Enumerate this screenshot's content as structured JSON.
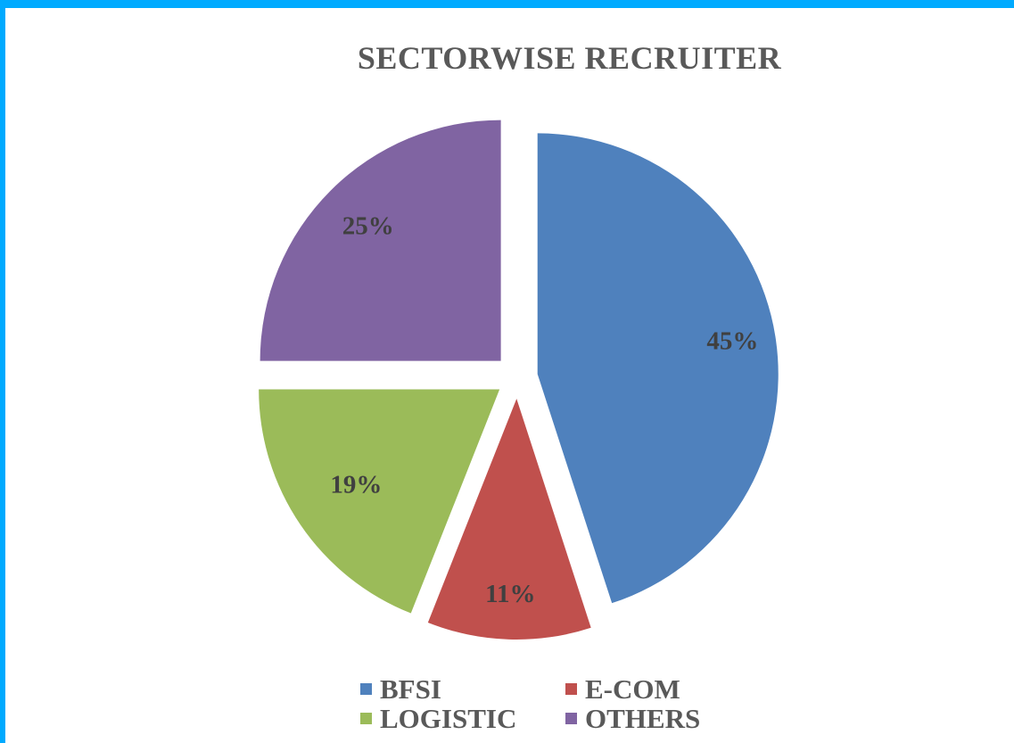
{
  "chart_data": {
    "type": "pie",
    "title": "SECTORWISE RECRUITER",
    "slices": [
      {
        "name": "BFSI",
        "value": 45,
        "label": "45%",
        "color": "#4f81bd"
      },
      {
        "name": "E-COM",
        "value": 11,
        "label": "11%",
        "color": "#c0504d"
      },
      {
        "name": "LOGISTIC",
        "value": 19,
        "label": "19%",
        "color": "#9bbb59"
      },
      {
        "name": "OTHERS",
        "value": 25,
        "label": "25%",
        "color": "#8064a2"
      }
    ],
    "start_angle": "12 o'clock",
    "direction": "clockwise",
    "exploded": true,
    "legend": {
      "position": "bottom",
      "items": [
        "BFSI",
        "E-COM",
        "LOGISTIC",
        "OTHERS"
      ]
    }
  },
  "frame": {
    "border_color": "#00aaff"
  }
}
